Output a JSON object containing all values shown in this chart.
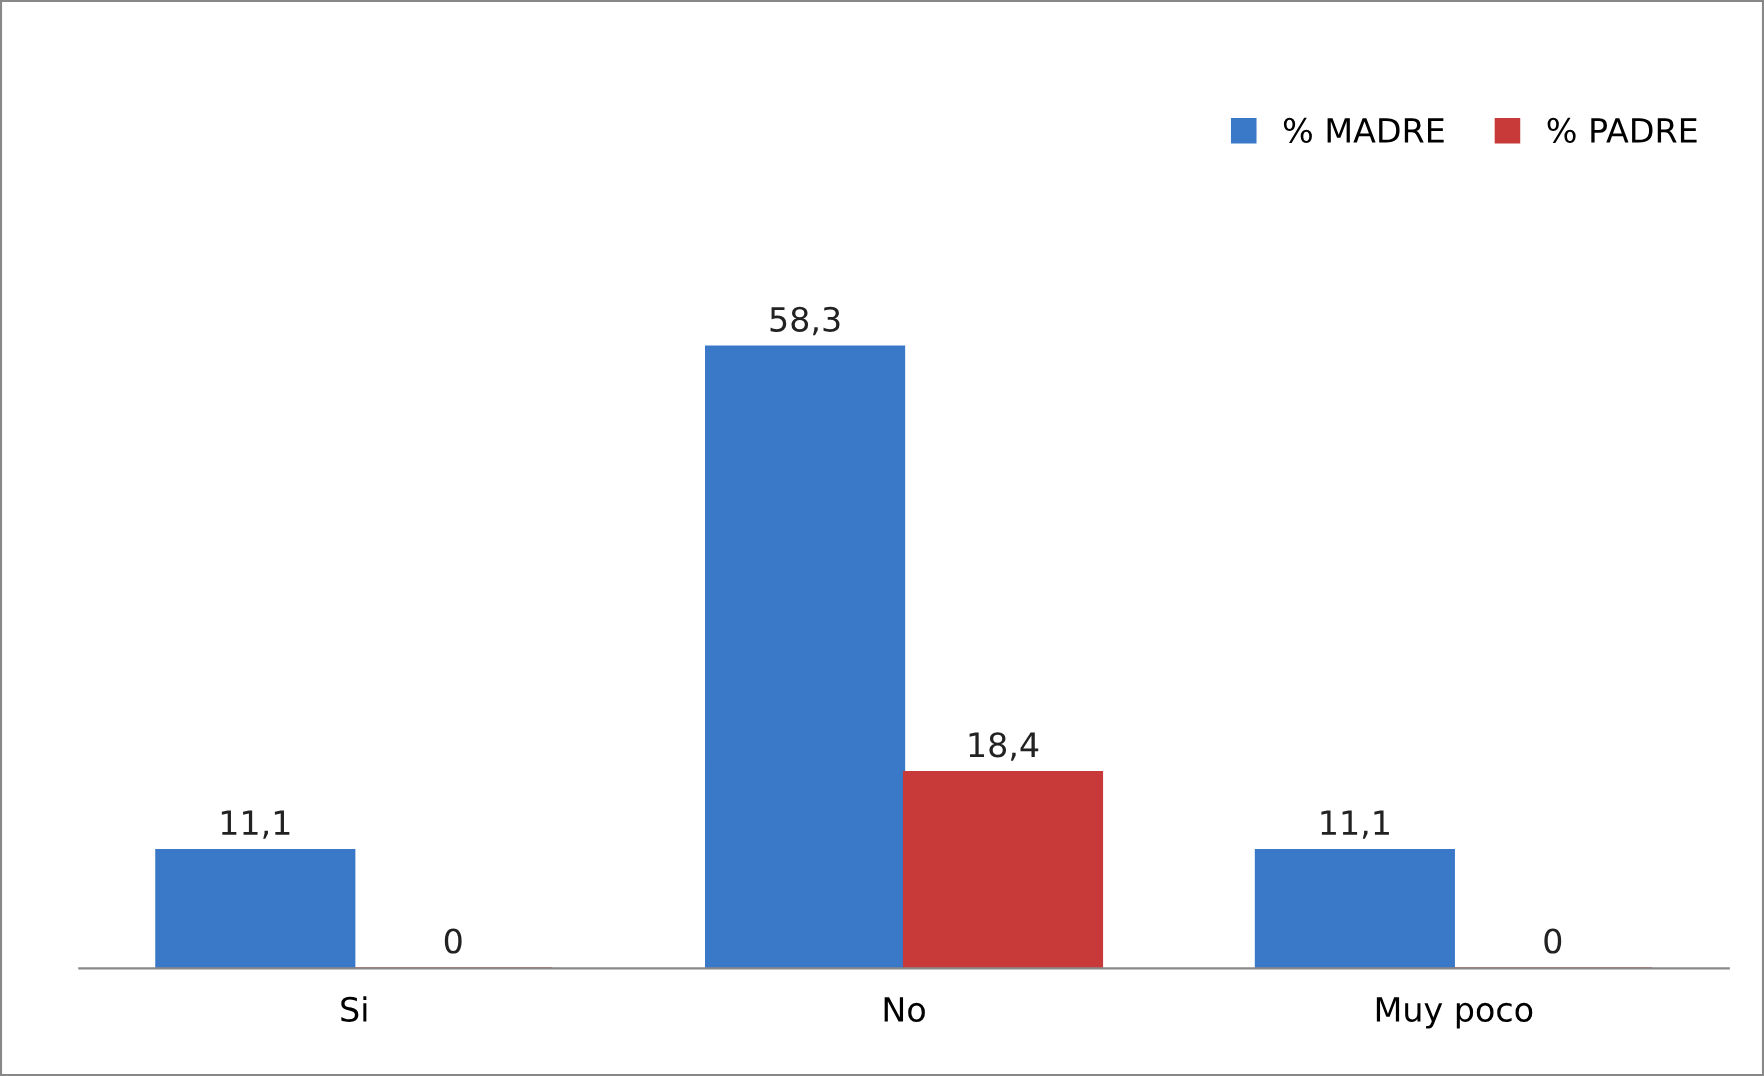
{
  "chart_data": {
    "type": "bar",
    "categories": [
      "Si",
      "No",
      "Muy poco"
    ],
    "series": [
      {
        "name": "% MADRE",
        "color": "#3a78c8",
        "values": [
          11.1,
          58.3,
          11.1
        ],
        "value_labels": [
          "11,1",
          "58,3",
          "11,1"
        ]
      },
      {
        "name": "% PADRE",
        "color": "#c83a3a",
        "values": [
          0,
          18.4,
          0
        ],
        "value_labels": [
          "0",
          "18,4",
          "0"
        ]
      }
    ],
    "tick_labels": "x",
    "grid": false,
    "legend": "top right"
  }
}
